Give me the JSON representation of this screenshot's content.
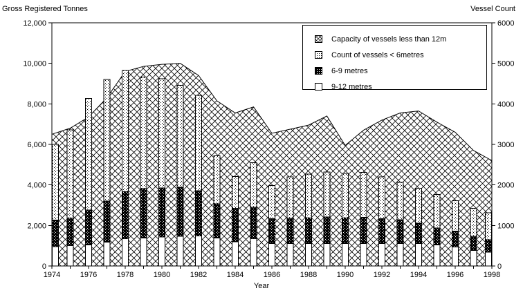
{
  "axes_titles": {
    "left": "Gross Registered Tonnes",
    "right": "Vessel Count",
    "x": "Year"
  },
  "legend": {
    "items": [
      {
        "label": "Capacity of vessels less than 12m",
        "pattern": "crosshatch"
      },
      {
        "label": "Count of vessels < 6metres",
        "pattern": "dots-light"
      },
      {
        "label": "6-9 metres",
        "pattern": "dots-dark"
      },
      {
        "label": "9-12 metres",
        "pattern": "white"
      }
    ]
  },
  "chart_data": {
    "type": "combo-area-stacked-bar",
    "x": [
      1974,
      1975,
      1976,
      1977,
      1978,
      1979,
      1980,
      1981,
      1982,
      1983,
      1984,
      1985,
      1986,
      1987,
      1988,
      1989,
      1990,
      1991,
      1992,
      1993,
      1994,
      1995,
      1996,
      1997,
      1998
    ],
    "x_tick_label_step": 2,
    "x_tick_labels": [
      "1974",
      "1976",
      "1978",
      "1980",
      "1982",
      "1984",
      "1986",
      "1988",
      "1990",
      "1992",
      "1994",
      "1996",
      "1998"
    ],
    "left_axis": {
      "title": "Gross Registered Tonnes",
      "min": 0,
      "max": 12000,
      "step": 2000,
      "tick_labels": [
        "0",
        "2,000",
        "4,000",
        "6,000",
        "8,000",
        "10,000",
        "12,000"
      ]
    },
    "right_axis": {
      "title": "Vessel Count",
      "min": 0,
      "max": 6000,
      "step": 1000,
      "tick_labels": [
        "0",
        "1000",
        "2000",
        "3000",
        "4000",
        "5000",
        "6000"
      ]
    },
    "grid": false,
    "legend_position": "top-right-inside",
    "series": [
      {
        "name": "Capacity of vessels less than 12m",
        "type": "area",
        "axis": "left",
        "pattern": "crosshatch",
        "values": [
          6500,
          6800,
          7350,
          8300,
          9600,
          9850,
          9950,
          10000,
          9400,
          8150,
          7550,
          7850,
          6550,
          6750,
          6950,
          7400,
          5950,
          6700,
          7200,
          7550,
          7650,
          7100,
          6600,
          5700,
          5200
        ]
      },
      {
        "name": "Count of vessels < 6metres",
        "type": "bar",
        "axis": "right",
        "pattern": "dots-light",
        "stack": "top",
        "values": [
          1870,
          2180,
          2750,
          3000,
          2990,
          2760,
          2690,
          2520,
          2350,
          1180,
          790,
          1100,
          820,
          1020,
          1080,
          1110,
          1100,
          1110,
          1030,
          920,
          860,
          820,
          750,
          690,
          660
        ]
      },
      {
        "name": "6-9 metres",
        "type": "bar",
        "axis": "right",
        "pattern": "dots-dark",
        "stack": "middle",
        "values": [
          650,
          680,
          860,
          1010,
          1160,
          1215,
          1210,
          1210,
          1120,
          845,
          820,
          770,
          620,
          625,
          635,
          660,
          635,
          650,
          615,
          590,
          510,
          420,
          395,
          355,
          310
        ]
      },
      {
        "name": "9-12 metres",
        "type": "bar",
        "axis": "right",
        "pattern": "white",
        "stack": "bottom",
        "values": [
          480,
          500,
          520,
          590,
          670,
          690,
          720,
          730,
          740,
          690,
          600,
          675,
          550,
          550,
          550,
          550,
          550,
          550,
          550,
          550,
          550,
          520,
          465,
          380,
          340
        ]
      }
    ],
    "stack_order_bottom_to_top": [
      "9-12 metres",
      "6-9 metres",
      "Count of vessels < 6metres"
    ]
  }
}
